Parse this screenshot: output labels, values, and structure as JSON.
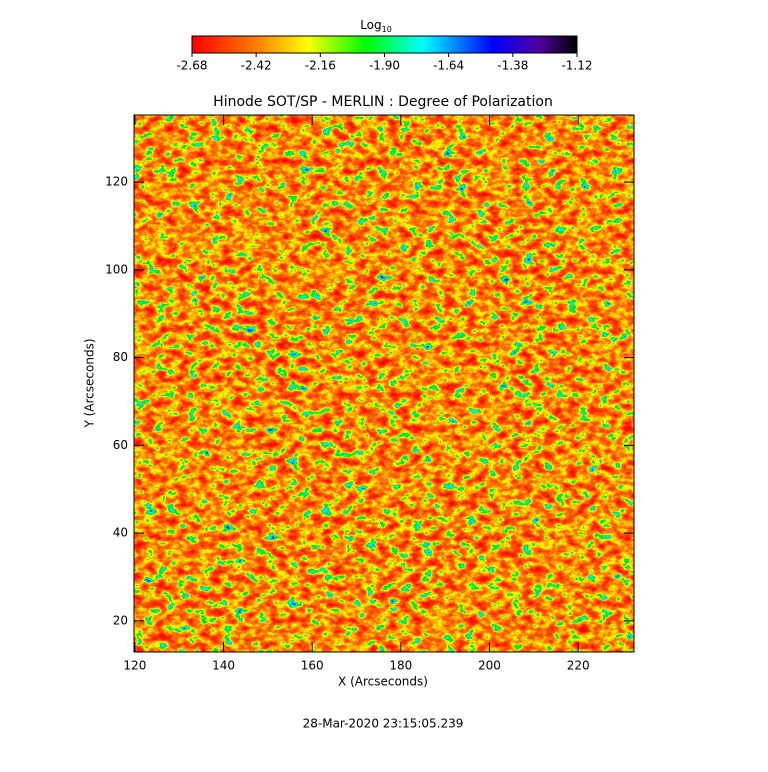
{
  "chart_data": {
    "type": "heatmap",
    "title": "Hinode SOT/SP - MERLIN : Degree of Polarization",
    "x_label": "X (Arcseconds)",
    "y_label": "Y (Arcseconds)",
    "xlim": [
      119.8,
      232.6
    ],
    "xticks": [
      120,
      140,
      160,
      180,
      200,
      220
    ],
    "ylim": [
      12.9,
      135.3
    ],
    "yticks": [
      20,
      40,
      60,
      80,
      100,
      120
    ],
    "colorbar_label": "Log",
    "colorbar_label_sub": "10",
    "clim": [
      -2.68,
      -1.12
    ],
    "cticks": [
      -2.68,
      -2.42,
      -2.16,
      {
        "value": -1.9,
        "label": "-1.90"
      },
      -1.64,
      -1.38,
      -1.12
    ],
    "timestamp": "28-Mar-2020 23:15:05.239"
  }
}
